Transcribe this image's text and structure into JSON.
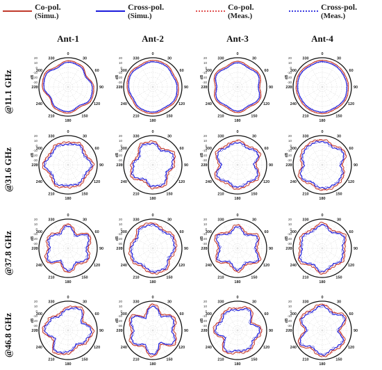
{
  "legend": [
    {
      "label": "Co-pol.",
      "sub": "(Simu.)",
      "color": "#c0392b",
      "style": "solid"
    },
    {
      "label": "Cross-pol.",
      "sub": "(Simu.)",
      "color": "#1a1adc",
      "style": "solid"
    },
    {
      "label": "Co-pol.",
      "sub": "(Meas.)",
      "color": "#e05050",
      "style": "dotted"
    },
    {
      "label": "Cross-pol.",
      "sub": "(Meas.)",
      "color": "#3a3ae0",
      "style": "dotted"
    }
  ],
  "columns": [
    "Ant-1",
    "Ant-2",
    "Ant-3",
    "Ant-4"
  ],
  "rows": [
    "@11.1 GHz",
    "@31.6 GHz",
    "@37.8 GHz",
    "@46.8 GHz"
  ],
  "axis": {
    "angle_labels": [
      "0",
      "30",
      "60",
      "90",
      "120",
      "150",
      "180",
      "210",
      "240",
      "270",
      "300",
      "330"
    ],
    "radial_labels": [
      "20",
      "10",
      "0",
      "-10",
      "-20",
      "-30",
      "-40"
    ],
    "radial_unit": "dB",
    "rlim": [
      -40,
      20
    ]
  },
  "chart_data": {
    "type": "polar",
    "rlim": [
      -40,
      20
    ],
    "angle_step_deg": 30,
    "series_names": [
      "Co-pol. (Simu.)",
      "Cross-pol. (Simu.)",
      "Co-pol. (Meas.)",
      "Cross-pol. (Meas.)"
    ],
    "panels": [
      {
        "row": "@11.1 GHz",
        "col": "Ant-1",
        "co": [
          14,
          12,
          4,
          13,
          15,
          8,
          14,
          12,
          4,
          13,
          15,
          8
        ],
        "cross": [
          11,
          9,
          2,
          10,
          12,
          5,
          11,
          9,
          2,
          10,
          12,
          5
        ]
      },
      {
        "row": "@11.1 GHz",
        "col": "Ant-2",
        "co": [
          15,
          14,
          10,
          13,
          15,
          12,
          15,
          14,
          10,
          13,
          15,
          12
        ],
        "cross": [
          12,
          11,
          7,
          10,
          12,
          9,
          12,
          11,
          7,
          10,
          12,
          9
        ]
      },
      {
        "row": "@11.1 GHz",
        "col": "Ant-3",
        "co": [
          13,
          8,
          12,
          6,
          13,
          8,
          13,
          8,
          12,
          6,
          13,
          8
        ],
        "cross": [
          10,
          5,
          9,
          3,
          10,
          5,
          10,
          5,
          9,
          3,
          10,
          5
        ]
      },
      {
        "row": "@11.1 GHz",
        "col": "Ant-4",
        "co": [
          15,
          14,
          13,
          14,
          15,
          13,
          15,
          14,
          13,
          14,
          15,
          13
        ],
        "cross": [
          12,
          11,
          10,
          11,
          12,
          10,
          12,
          11,
          10,
          11,
          12,
          10
        ]
      },
      {
        "row": "@31.6 GHz",
        "col": "Ant-1",
        "co": [
          6,
          10,
          2,
          12,
          4,
          8,
          6,
          10,
          2,
          12,
          4,
          8
        ],
        "cross": [
          2,
          6,
          -2,
          8,
          0,
          4,
          2,
          6,
          -2,
          8,
          0,
          4
        ]
      },
      {
        "row": "@31.6 GHz",
        "col": "Ant-2",
        "co": [
          8,
          -2,
          10,
          4,
          -4,
          9,
          8,
          -2,
          10,
          4,
          -4,
          9
        ],
        "cross": [
          4,
          -6,
          6,
          0,
          -8,
          5,
          4,
          -6,
          6,
          0,
          -8,
          5
        ]
      },
      {
        "row": "@31.6 GHz",
        "col": "Ant-3",
        "co": [
          10,
          4,
          12,
          -2,
          11,
          6,
          10,
          4,
          12,
          -2,
          11,
          6
        ],
        "cross": [
          6,
          0,
          8,
          -6,
          7,
          2,
          6,
          0,
          8,
          -6,
          7,
          2
        ]
      },
      {
        "row": "@31.6 GHz",
        "col": "Ant-4",
        "co": [
          12,
          6,
          14,
          2,
          10,
          12,
          12,
          6,
          14,
          2,
          10,
          12
        ],
        "cross": [
          8,
          2,
          10,
          -2,
          6,
          8,
          8,
          2,
          10,
          -2,
          6,
          8
        ]
      },
      {
        "row": "@37.8 GHz",
        "col": "Ant-1",
        "co": [
          10,
          -6,
          12,
          2,
          8,
          -2,
          10,
          -6,
          12,
          2,
          8,
          -2
        ],
        "cross": [
          6,
          -10,
          8,
          -2,
          4,
          -6,
          6,
          -10,
          8,
          -2,
          4,
          -6
        ]
      },
      {
        "row": "@37.8 GHz",
        "col": "Ant-2",
        "co": [
          12,
          4,
          10,
          8,
          2,
          12,
          12,
          4,
          10,
          8,
          2,
          12
        ],
        "cross": [
          8,
          0,
          6,
          4,
          -2,
          8,
          8,
          0,
          6,
          4,
          -2,
          8
        ]
      },
      {
        "row": "@37.8 GHz",
        "col": "Ant-3",
        "co": [
          8,
          -4,
          10,
          0,
          12,
          -2,
          8,
          -4,
          10,
          0,
          12,
          -2
        ],
        "cross": [
          4,
          -8,
          6,
          -4,
          8,
          -6,
          4,
          -8,
          6,
          -4,
          8,
          -6
        ]
      },
      {
        "row": "@37.8 GHz",
        "col": "Ant-4",
        "co": [
          12,
          2,
          14,
          6,
          10,
          4,
          12,
          2,
          14,
          6,
          10,
          4
        ],
        "cross": [
          8,
          -2,
          10,
          2,
          6,
          0,
          8,
          -2,
          10,
          2,
          6,
          0
        ]
      },
      {
        "row": "@46.8 GHz",
        "col": "Ant-1",
        "co": [
          8,
          14,
          -4,
          12,
          6,
          -2,
          8,
          14,
          -4,
          12,
          6,
          -2
        ],
        "cross": [
          4,
          10,
          -8,
          8,
          2,
          -6,
          4,
          10,
          -8,
          8,
          2,
          -6
        ]
      },
      {
        "row": "@46.8 GHz",
        "col": "Ant-2",
        "co": [
          14,
          -2,
          12,
          4,
          14,
          -6,
          14,
          -2,
          12,
          4,
          14,
          -6
        ],
        "cross": [
          10,
          -6,
          8,
          0,
          10,
          -10,
          10,
          -6,
          8,
          0,
          10,
          -10
        ]
      },
      {
        "row": "@46.8 GHz",
        "col": "Ant-3",
        "co": [
          6,
          12,
          -6,
          10,
          2,
          8,
          6,
          12,
          -6,
          10,
          2,
          8
        ],
        "cross": [
          2,
          8,
          -10,
          6,
          -2,
          4,
          2,
          8,
          -10,
          6,
          -2,
          4
        ]
      },
      {
        "row": "@46.8 GHz",
        "col": "Ant-4",
        "co": [
          14,
          4,
          16,
          -4,
          12,
          8,
          14,
          4,
          16,
          -4,
          12,
          8
        ],
        "cross": [
          10,
          0,
          12,
          -8,
          8,
          4,
          10,
          0,
          12,
          -8,
          8,
          4
        ]
      }
    ]
  }
}
